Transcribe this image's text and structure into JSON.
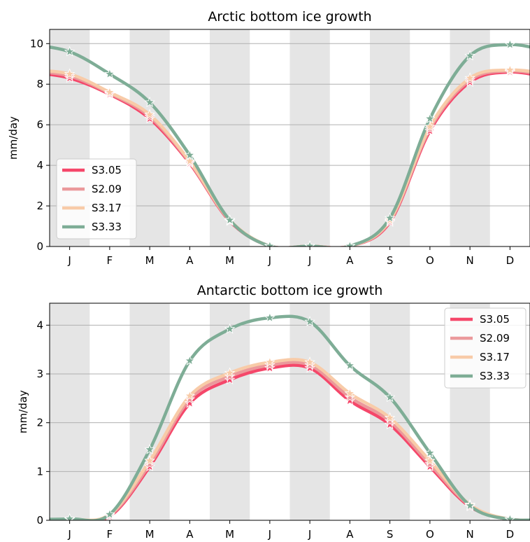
{
  "chart_data": [
    {
      "type": "line",
      "title": "Arctic bottom ice growth",
      "xlabel": "",
      "ylabel": "mm/day",
      "categories": [
        "J",
        "F",
        "M",
        "A",
        "M",
        "J",
        "J",
        "A",
        "S",
        "O",
        "N",
        "D"
      ],
      "ylim": [
        0,
        10.7
      ],
      "yticks": [
        0,
        2,
        4,
        6,
        8,
        10
      ],
      "grid": "horizontal",
      "month_shading": "alternate",
      "legend": "lower-left",
      "series": [
        {
          "name": "S3.05",
          "color": "#f5476a",
          "values": [
            8.3,
            7.5,
            6.3,
            4.1,
            1.25,
            0.02,
            0.02,
            0.02,
            1.2,
            5.7,
            8.1,
            8.6
          ]
        },
        {
          "name": "S2.09",
          "color": "#eb999b",
          "values": [
            8.4,
            7.55,
            6.4,
            4.15,
            1.28,
            0.02,
            0.02,
            0.02,
            1.25,
            5.8,
            8.2,
            8.65
          ]
        },
        {
          "name": "S3.17",
          "color": "#f8cba8",
          "values": [
            8.5,
            7.6,
            6.5,
            4.2,
            1.3,
            0.02,
            0.02,
            0.02,
            1.3,
            5.9,
            8.3,
            8.7
          ]
        },
        {
          "name": "S3.33",
          "color": "#7ead96",
          "values": [
            9.6,
            8.5,
            7.1,
            4.5,
            1.3,
            0.02,
            0.02,
            0.02,
            1.4,
            6.3,
            9.4,
            9.95
          ]
        }
      ]
    },
    {
      "type": "line",
      "title": "Antarctic bottom ice growth",
      "xlabel": "",
      "ylabel": "mm/day",
      "categories": [
        "J",
        "F",
        "M",
        "A",
        "M",
        "J",
        "J",
        "A",
        "S",
        "O",
        "N",
        "D"
      ],
      "ylim": [
        0,
        4.45
      ],
      "yticks": [
        0,
        1,
        2,
        3,
        4
      ],
      "grid": "horizontal",
      "month_shading": "alternate",
      "legend": "upper-right",
      "series": [
        {
          "name": "S3.05",
          "color": "#f5476a",
          "values": [
            0.02,
            0.08,
            1.1,
            2.4,
            2.88,
            3.12,
            3.12,
            2.45,
            1.96,
            1.1,
            0.28,
            0.02
          ]
        },
        {
          "name": "S2.09",
          "color": "#eb999b",
          "values": [
            0.02,
            0.1,
            1.15,
            2.48,
            2.95,
            3.18,
            3.18,
            2.52,
            2.03,
            1.15,
            0.3,
            0.02
          ]
        },
        {
          "name": "S3.17",
          "color": "#f8cba8",
          "values": [
            0.02,
            0.12,
            1.22,
            2.55,
            3.02,
            3.24,
            3.24,
            2.6,
            2.1,
            1.22,
            0.32,
            0.02
          ]
        },
        {
          "name": "S3.33",
          "color": "#7ead96",
          "values": [
            0.03,
            0.12,
            1.45,
            3.27,
            3.92,
            4.15,
            4.07,
            3.17,
            2.52,
            1.38,
            0.3,
            0.02
          ]
        }
      ]
    }
  ]
}
